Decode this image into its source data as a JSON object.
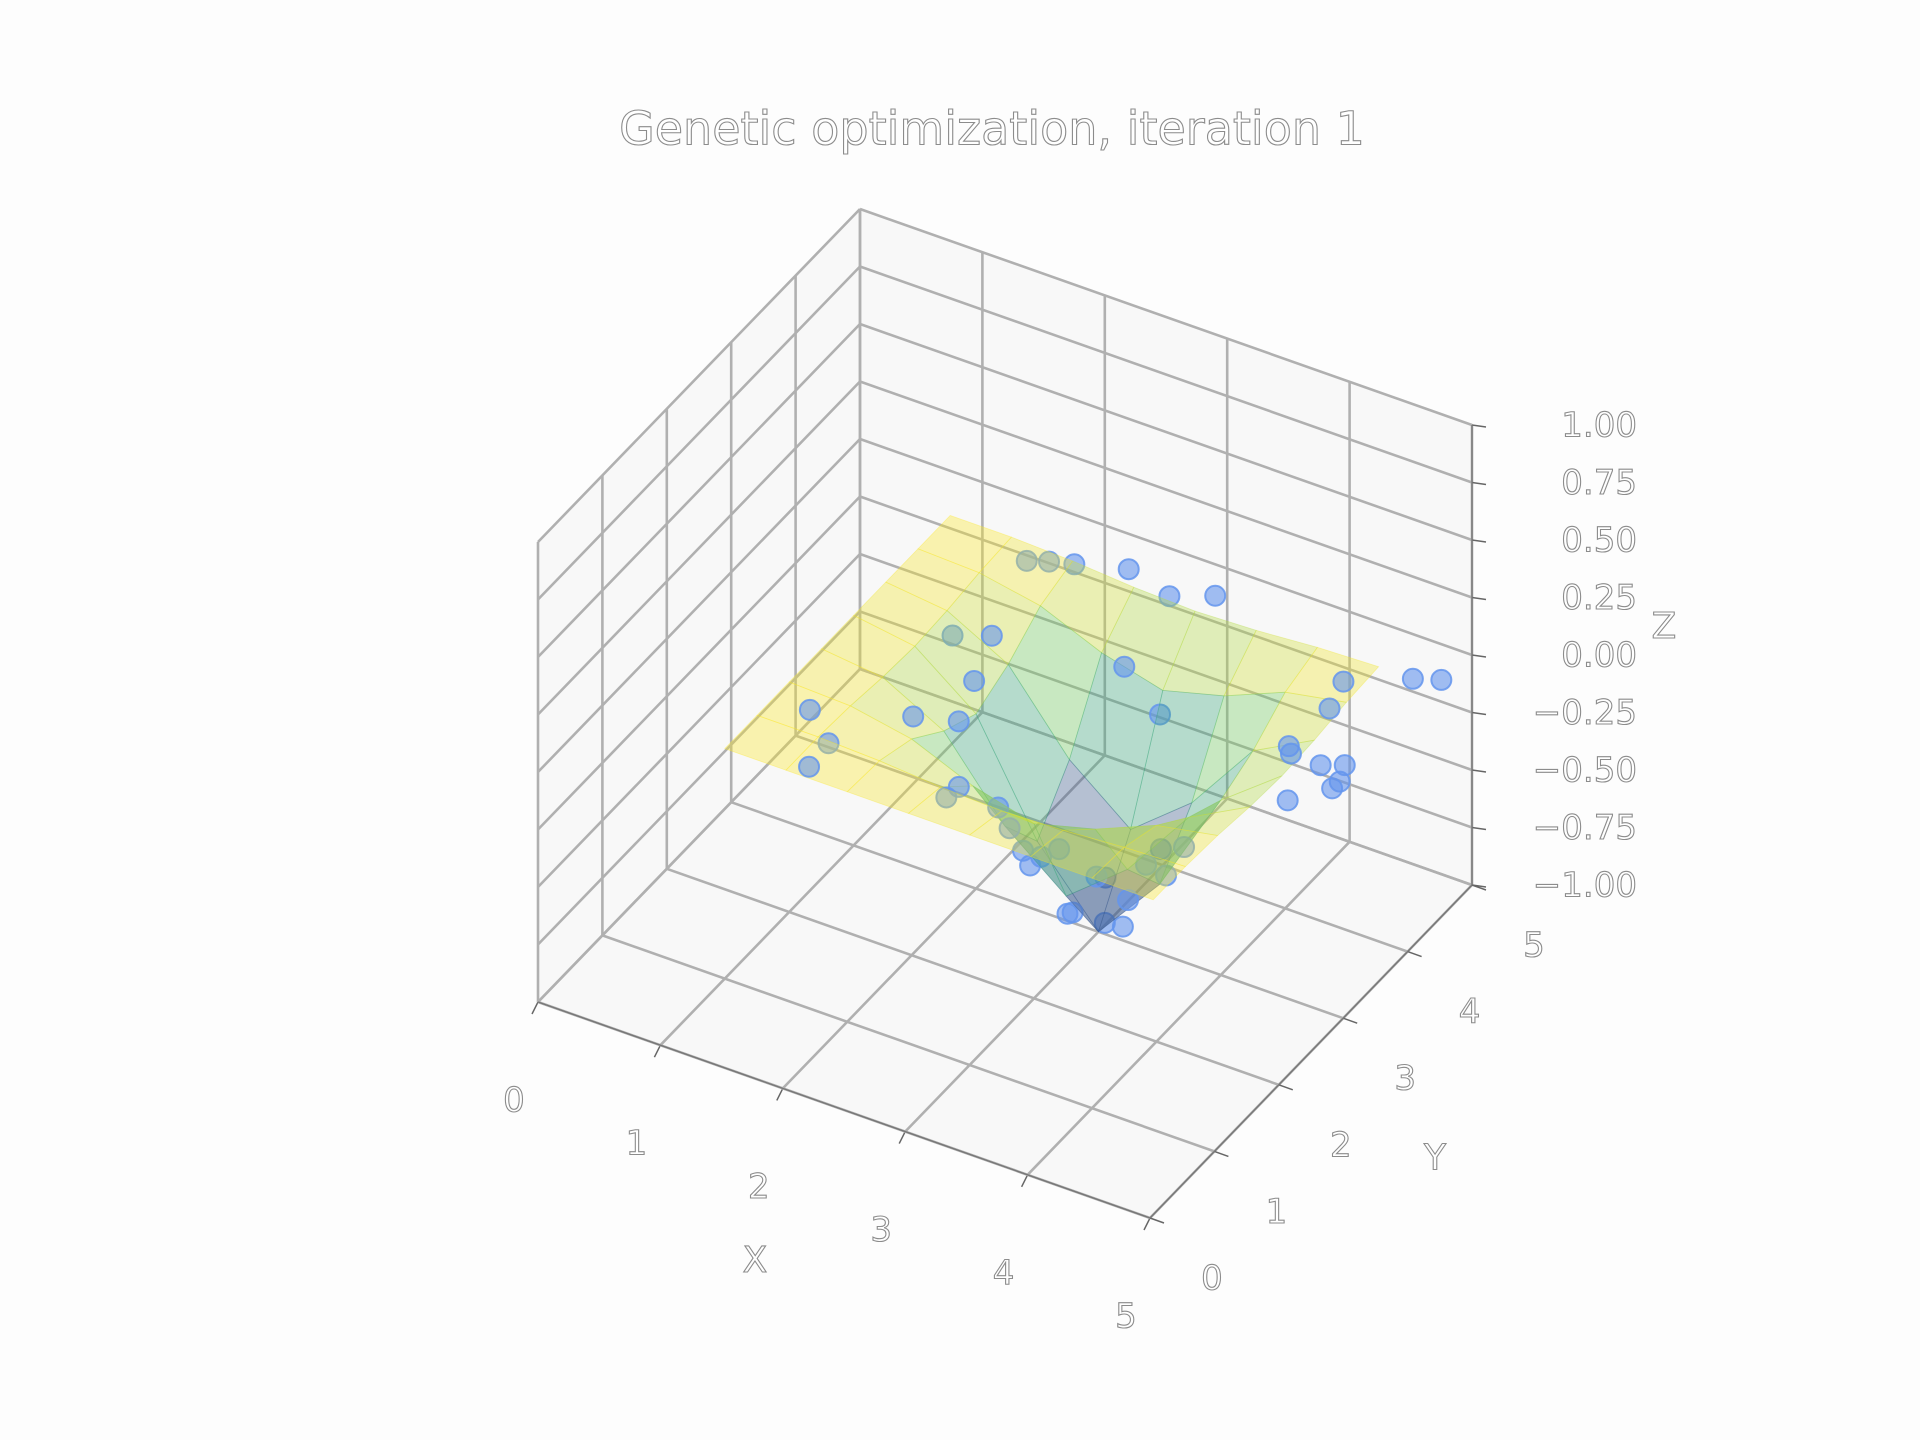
{
  "chart_data": {
    "type": "scatter3d",
    "title": "Genetic optimization, iteration 1",
    "xlabel": "X",
    "ylabel": "Y",
    "zlabel": "Z",
    "xlim": [
      0,
      5
    ],
    "ylim": [
      0,
      5
    ],
    "zlim": [
      -1,
      1
    ],
    "xticks": [
      0,
      1,
      2,
      3,
      4,
      5
    ],
    "yticks": [
      0,
      1,
      2,
      3,
      4,
      5
    ],
    "zticks": [
      {
        "value": -1,
        "label": "−1.00"
      },
      {
        "value": -0.75,
        "label": "−0.75"
      },
      {
        "value": -0.5,
        "label": "−0.50"
      },
      {
        "value": -0.25,
        "label": "−0.25"
      },
      {
        "value": 0,
        "label": "0.00"
      },
      {
        "value": 0.25,
        "label": "0.25"
      },
      {
        "value": 0.5,
        "label": "0.50"
      },
      {
        "value": 0.75,
        "label": "0.75"
      },
      {
        "value": 1,
        "label": "1.00"
      }
    ],
    "grid": true,
    "series": [
      {
        "color": "#6495ed",
        "x": [
          1.72,
          1.86,
          2.03,
          2.39,
          2.77,
          3.06,
          4.36,
          4.78,
          4.96,
          4.42,
          4.34,
          4.41,
          4.7,
          4.86,
          4.92,
          4.94,
          4.72,
          1.64,
          1.84,
          1.89,
          1.98,
          2.68,
          3.03,
          1.85,
          1.29,
          1.6,
          1.62,
          2.66,
          2.57,
          2.61,
          3.19,
          3.0,
          3.3,
          2.8,
          3.4,
          2.9,
          3.5,
          3.1,
          2.6,
          3.2,
          3.0,
          3.6,
          2.7,
          3.3,
          2.9,
          3.7
        ],
        "y": [
          4.32,
          4.4,
          4.47,
          4.63,
          4.54,
          4.7,
          4.22,
          4.5,
          4.6,
          3.89,
          3.41,
          3.31,
          3.22,
          3.29,
          2.98,
          3.06,
          2.67,
          3.32,
          3.55,
          3.18,
          2.77,
          4.01,
          3.9,
          2.31,
          1.77,
          1.47,
          1.13,
          2.09,
          1.65,
          1.38,
          1.26,
          2.6,
          2.4,
          2.9,
          2.7,
          3.3,
          3.1,
          2.2,
          2.7,
          3.0,
          3.1,
          2.6,
          2.4,
          3.4,
          2.3,
          3.0
        ],
        "z": [
          -0.01,
          -0.01,
          -0.01,
          -0.01,
          -0.03,
          -0.02,
          -0.01,
          0,
          0,
          -0.02,
          -0.06,
          -0.05,
          -0.02,
          -0.01,
          -0.01,
          0,
          -0.01,
          -0.06,
          -0.09,
          -0.17,
          -0.21,
          -0.2,
          -0.31,
          -0.08,
          0,
          0,
          0,
          -0.26,
          -0.06,
          -0.02,
          -0.01,
          -0.8,
          -0.53,
          -0.93,
          -0.7,
          -0.87,
          -0.69,
          -0.39,
          -0.7,
          -0.94,
          -0.99,
          -0.48,
          -0.53,
          -0.7,
          -0.49,
          -0.5
        ]
      }
    ],
    "surface": {
      "x": [
        1,
        1.5,
        2,
        2.5,
        3,
        3.5,
        4,
        4.5
      ],
      "y": [
        1,
        1.5,
        2,
        2.5,
        3,
        3.5,
        4,
        4.5
      ],
      "z": [
        [
          0,
          0,
          0,
          0,
          0,
          0,
          0,
          0
        ],
        [
          0,
          0,
          -0.01,
          -0.03,
          -0.04,
          -0.03,
          -0.01,
          0
        ],
        [
          0,
          -0.01,
          -0.06,
          -0.17,
          -0.24,
          -0.17,
          -0.06,
          -0.01
        ],
        [
          0,
          -0.03,
          -0.17,
          -0.49,
          -0.7,
          -0.49,
          -0.17,
          -0.03
        ],
        [
          0,
          -0.04,
          -0.24,
          -0.7,
          -1,
          -0.7,
          -0.24,
          -0.04
        ],
        [
          0,
          -0.03,
          -0.17,
          -0.49,
          -0.7,
          -0.49,
          -0.17,
          -0.03
        ],
        [
          0,
          -0.01,
          -0.06,
          -0.17,
          -0.24,
          -0.17,
          -0.06,
          -0.01
        ],
        [
          0,
          0,
          -0.01,
          -0.03,
          -0.04,
          -0.03,
          -0.01,
          0
        ]
      ],
      "colormap": [
        "#440154",
        "#3b528b",
        "#21918c",
        "#5ec962",
        "#fde725"
      ],
      "alpha": 0.35
    }
  }
}
